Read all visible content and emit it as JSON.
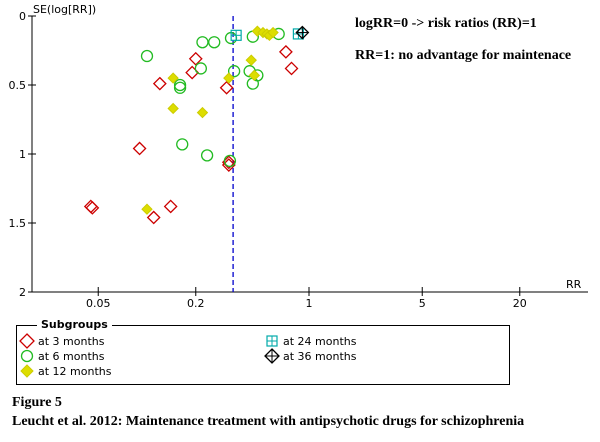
{
  "chart_data": {
    "type": "scatter",
    "subtype": "funnel-plot",
    "ylabel": "SE(log[RR])",
    "xlabel": "RR",
    "xscale": "log",
    "xlim": [
      0.02,
      50
    ],
    "ylim": [
      0,
      2
    ],
    "y_inverted": true,
    "xticks": [
      0.05,
      0.2,
      1,
      5,
      20
    ],
    "xtick_labels": [
      "0.05",
      "0.2",
      "1",
      "5",
      "20"
    ],
    "yticks": [
      0,
      0.5,
      1,
      1.5,
      2
    ],
    "ytick_labels": [
      "0",
      "0.5",
      "1",
      "1.5",
      "2"
    ],
    "reference_line": {
      "rr": 0.34,
      "style": "dashed",
      "color": "#0000cc"
    },
    "grid": false,
    "legend_title": "Subgroups",
    "legend_placement": "bottom",
    "series": [
      {
        "name": "at 3 months",
        "marker": "diamond-open",
        "color": "#cc0000",
        "points": [
          [
            0.045,
            1.38
          ],
          [
            0.046,
            1.39
          ],
          [
            0.11,
            1.46
          ],
          [
            0.14,
            1.38
          ],
          [
            0.09,
            0.96
          ],
          [
            0.12,
            0.49
          ],
          [
            0.19,
            0.41
          ],
          [
            0.2,
            0.31
          ],
          [
            0.31,
            0.52
          ],
          [
            0.32,
            1.06
          ],
          [
            0.32,
            1.08
          ],
          [
            0.72,
            0.26
          ],
          [
            0.78,
            0.38
          ]
        ]
      },
      {
        "name": "at 6 months",
        "marker": "circle-open",
        "color": "#22bb22",
        "points": [
          [
            0.1,
            0.29
          ],
          [
            0.165,
            0.93
          ],
          [
            0.235,
            1.01
          ],
          [
            0.325,
            1.05
          ],
          [
            0.16,
            0.5
          ],
          [
            0.16,
            0.52
          ],
          [
            0.215,
            0.38
          ],
          [
            0.22,
            0.19
          ],
          [
            0.26,
            0.19
          ],
          [
            0.33,
            0.16
          ],
          [
            0.345,
            0.4
          ],
          [
            0.43,
            0.4
          ],
          [
            0.45,
            0.49
          ],
          [
            0.48,
            0.43
          ],
          [
            0.45,
            0.15
          ],
          [
            0.65,
            0.13
          ]
        ]
      },
      {
        "name": "at 12 months",
        "marker": "diamond-filled",
        "color": "#dddd00",
        "points": [
          [
            0.1,
            1.4
          ],
          [
            0.145,
            0.45
          ],
          [
            0.145,
            0.67
          ],
          [
            0.22,
            0.7
          ],
          [
            0.32,
            0.45
          ],
          [
            0.44,
            0.32
          ],
          [
            0.46,
            0.43
          ],
          [
            0.48,
            0.11
          ],
          [
            0.52,
            0.12
          ],
          [
            0.55,
            0.13
          ],
          [
            0.57,
            0.14
          ],
          [
            0.6,
            0.12
          ]
        ]
      },
      {
        "name": "at 24 months",
        "marker": "square-plus",
        "color": "#00aaaa",
        "points": [
          [
            0.355,
            0.14
          ],
          [
            0.86,
            0.13
          ]
        ]
      },
      {
        "name": "at 36 months",
        "marker": "diamond-cross",
        "color": "#000000",
        "points": [
          [
            0.91,
            0.12
          ]
        ]
      }
    ]
  },
  "annotations": {
    "line1": "logRR=0 -> risk ratios (RR)=1",
    "line2": "RR=1: no advantage for maintenace"
  },
  "caption": {
    "figure": "Figure 5",
    "title": "Leucht et al. 2012: Maintenance treatment with antipsychotic drugs for schizophrenia"
  }
}
